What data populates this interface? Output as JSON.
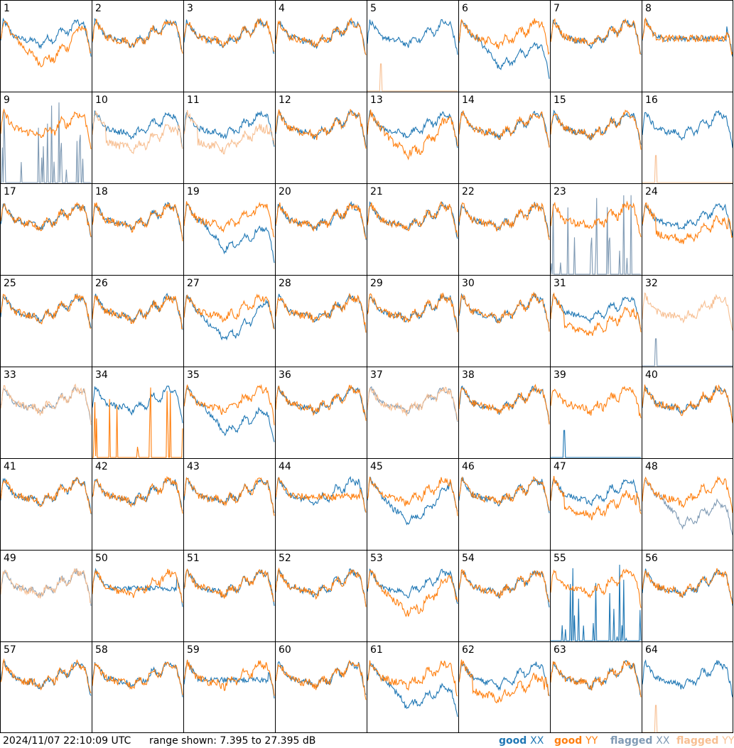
{
  "footer": {
    "timestamp": "2024/11/07 22:10:09 UTC",
    "range": "range shown: 7.395 to 27.395 dB"
  },
  "legend": [
    {
      "label": "good",
      "swatch": "XX",
      "color": "#1f77b4"
    },
    {
      "label": "good",
      "swatch": "YY",
      "color": "#ff7f0e"
    },
    {
      "label": "flagged",
      "swatch": "XX",
      "color": "#7f9ab4"
    },
    {
      "label": "flagged",
      "swatch": "YY",
      "color": "#f7bf92"
    }
  ],
  "colors": {
    "good_xx": "#1f77b4",
    "good_yy": "#ff7f0e",
    "flagged_xx": "#7f9ab4",
    "flagged_yy": "#f7bf92"
  },
  "chart_data": {
    "type": "line",
    "layout": "8x8 small multiples, one panel per antenna",
    "y_range_db": [
      7.395,
      27.395
    ],
    "series_names": [
      "good XX",
      "good YY",
      "flagged XX",
      "flagged YY"
    ],
    "panels": [
      {
        "id": "1",
        "xx": "good",
        "yy": "good",
        "shape": {
          "xx": "std",
          "yy": "dip"
        }
      },
      {
        "id": "2",
        "xx": "good",
        "yy": "good",
        "shape": {
          "xx": "std",
          "yy": "std"
        }
      },
      {
        "id": "3",
        "xx": "good",
        "yy": "good",
        "shape": {
          "xx": "std",
          "yy": "std"
        }
      },
      {
        "id": "4",
        "xx": "good",
        "yy": "good",
        "shape": {
          "xx": "std",
          "yy": "std"
        }
      },
      {
        "id": "5",
        "xx": "good",
        "yy": "flagged",
        "shape": {
          "xx": "std",
          "yy": "spike"
        }
      },
      {
        "id": "6",
        "xx": "good",
        "yy": "good",
        "shape": {
          "xx": "deep",
          "yy": "std"
        }
      },
      {
        "id": "7",
        "xx": "good",
        "yy": "good",
        "shape": {
          "xx": "std",
          "yy": "std"
        }
      },
      {
        "id": "8",
        "xx": "good",
        "yy": "good",
        "shape": {
          "xx": "flat",
          "yy": "flat"
        }
      },
      {
        "id": "9",
        "xx": "flagged",
        "yy": "good",
        "shape": {
          "xx": "spiky",
          "yy": "std"
        }
      },
      {
        "id": "10",
        "xx": "good",
        "yy": "flagged",
        "shape": {
          "xx": "std",
          "yy": "low"
        }
      },
      {
        "id": "11",
        "xx": "good",
        "yy": "flagged",
        "shape": {
          "xx": "std",
          "yy": "low"
        }
      },
      {
        "id": "12",
        "xx": "good",
        "yy": "good",
        "shape": {
          "xx": "std",
          "yy": "std"
        }
      },
      {
        "id": "13",
        "xx": "good",
        "yy": "good",
        "shape": {
          "xx": "std",
          "yy": "dip"
        }
      },
      {
        "id": "14",
        "xx": "good",
        "yy": "good",
        "shape": {
          "xx": "std",
          "yy": "std"
        }
      },
      {
        "id": "15",
        "xx": "good",
        "yy": "good",
        "shape": {
          "xx": "std",
          "yy": "std"
        }
      },
      {
        "id": "16",
        "xx": "good",
        "yy": "flagged",
        "shape": {
          "xx": "std",
          "yy": "spike"
        }
      },
      {
        "id": "17",
        "xx": "good",
        "yy": "good",
        "shape": {
          "xx": "std",
          "yy": "std"
        }
      },
      {
        "id": "18",
        "xx": "good",
        "yy": "good",
        "shape": {
          "xx": "std",
          "yy": "std"
        }
      },
      {
        "id": "19",
        "xx": "good",
        "yy": "good",
        "shape": {
          "xx": "deep",
          "yy": "std"
        }
      },
      {
        "id": "20",
        "xx": "good",
        "yy": "good",
        "shape": {
          "xx": "std",
          "yy": "std"
        }
      },
      {
        "id": "21",
        "xx": "good",
        "yy": "good",
        "shape": {
          "xx": "std",
          "yy": "std"
        }
      },
      {
        "id": "22",
        "xx": "good",
        "yy": "good",
        "shape": {
          "xx": "std",
          "yy": "std"
        }
      },
      {
        "id": "23",
        "xx": "flagged",
        "yy": "good",
        "shape": {
          "xx": "spiky",
          "yy": "std"
        }
      },
      {
        "id": "24",
        "xx": "good",
        "yy": "good",
        "shape": {
          "xx": "std",
          "yy": "low"
        }
      },
      {
        "id": "25",
        "xx": "good",
        "yy": "good",
        "shape": {
          "xx": "std",
          "yy": "std"
        }
      },
      {
        "id": "26",
        "xx": "good",
        "yy": "good",
        "shape": {
          "xx": "std",
          "yy": "std"
        }
      },
      {
        "id": "27",
        "xx": "good",
        "yy": "good",
        "shape": {
          "xx": "dip",
          "yy": "std"
        }
      },
      {
        "id": "28",
        "xx": "good",
        "yy": "good",
        "shape": {
          "xx": "std",
          "yy": "std"
        }
      },
      {
        "id": "29",
        "xx": "good",
        "yy": "good",
        "shape": {
          "xx": "std",
          "yy": "std"
        }
      },
      {
        "id": "30",
        "xx": "good",
        "yy": "good",
        "shape": {
          "xx": "std",
          "yy": "std"
        }
      },
      {
        "id": "31",
        "xx": "good",
        "yy": "good",
        "shape": {
          "xx": "std",
          "yy": "low"
        }
      },
      {
        "id": "32",
        "xx": "flagged",
        "yy": "flagged",
        "shape": {
          "xx": "spike",
          "yy": "std"
        }
      },
      {
        "id": "33",
        "xx": "flagged",
        "yy": "flagged",
        "shape": {
          "xx": "std",
          "yy": "std"
        }
      },
      {
        "id": "34",
        "xx": "good",
        "yy": "good",
        "shape": {
          "xx": "std",
          "yy": "spiky"
        }
      },
      {
        "id": "35",
        "xx": "good",
        "yy": "good",
        "shape": {
          "xx": "deep",
          "yy": "std"
        }
      },
      {
        "id": "36",
        "xx": "good",
        "yy": "good",
        "shape": {
          "xx": "std",
          "yy": "std"
        }
      },
      {
        "id": "37",
        "xx": "flagged",
        "yy": "flagged",
        "shape": {
          "xx": "std",
          "yy": "std"
        }
      },
      {
        "id": "38",
        "xx": "good",
        "yy": "good",
        "shape": {
          "xx": "std",
          "yy": "std"
        }
      },
      {
        "id": "39",
        "xx": "good",
        "yy": "good",
        "shape": {
          "xx": "spike",
          "yy": "std"
        }
      },
      {
        "id": "40",
        "xx": "good",
        "yy": "good",
        "shape": {
          "xx": "std",
          "yy": "std"
        }
      },
      {
        "id": "41",
        "xx": "good",
        "yy": "good",
        "shape": {
          "xx": "std",
          "yy": "std"
        }
      },
      {
        "id": "42",
        "xx": "good",
        "yy": "good",
        "shape": {
          "xx": "std",
          "yy": "std"
        }
      },
      {
        "id": "43",
        "xx": "good",
        "yy": "good",
        "shape": {
          "xx": "std",
          "yy": "std"
        }
      },
      {
        "id": "44",
        "xx": "good",
        "yy": "good",
        "shape": {
          "xx": "std",
          "yy": "flat"
        }
      },
      {
        "id": "45",
        "xx": "good",
        "yy": "good",
        "shape": {
          "xx": "dip",
          "yy": "std"
        }
      },
      {
        "id": "46",
        "xx": "good",
        "yy": "good",
        "shape": {
          "xx": "std",
          "yy": "std"
        }
      },
      {
        "id": "47",
        "xx": "good",
        "yy": "good",
        "shape": {
          "xx": "std",
          "yy": "low"
        }
      },
      {
        "id": "48",
        "xx": "flagged",
        "yy": "good",
        "shape": {
          "xx": "deep",
          "yy": "std"
        }
      },
      {
        "id": "49",
        "xx": "flagged",
        "yy": "flagged",
        "shape": {
          "xx": "std",
          "yy": "std"
        }
      },
      {
        "id": "50",
        "xx": "good",
        "yy": "good",
        "shape": {
          "xx": "flat",
          "yy": "std"
        }
      },
      {
        "id": "51",
        "xx": "good",
        "yy": "good",
        "shape": {
          "xx": "std",
          "yy": "std"
        }
      },
      {
        "id": "52",
        "xx": "good",
        "yy": "good",
        "shape": {
          "xx": "std",
          "yy": "std"
        }
      },
      {
        "id": "53",
        "xx": "good",
        "yy": "good",
        "shape": {
          "xx": "std",
          "yy": "dip"
        }
      },
      {
        "id": "54",
        "xx": "good",
        "yy": "good",
        "shape": {
          "xx": "std",
          "yy": "std"
        }
      },
      {
        "id": "55",
        "xx": "good",
        "yy": "good",
        "shape": {
          "xx": "spiky",
          "yy": "std"
        }
      },
      {
        "id": "56",
        "xx": "good",
        "yy": "good",
        "shape": {
          "xx": "std",
          "yy": "std"
        }
      },
      {
        "id": "57",
        "xx": "good",
        "yy": "good",
        "shape": {
          "xx": "std",
          "yy": "std"
        }
      },
      {
        "id": "58",
        "xx": "good",
        "yy": "good",
        "shape": {
          "xx": "std",
          "yy": "std"
        }
      },
      {
        "id": "59",
        "xx": "good",
        "yy": "good",
        "shape": {
          "xx": "flat",
          "yy": "std"
        }
      },
      {
        "id": "60",
        "xx": "good",
        "yy": "good",
        "shape": {
          "xx": "std",
          "yy": "std"
        }
      },
      {
        "id": "61",
        "xx": "good",
        "yy": "good",
        "shape": {
          "xx": "deep",
          "yy": "std"
        }
      },
      {
        "id": "62",
        "xx": "good",
        "yy": "good",
        "shape": {
          "xx": "std",
          "yy": "low"
        }
      },
      {
        "id": "63",
        "xx": "good",
        "yy": "good",
        "shape": {
          "xx": "std",
          "yy": "std"
        }
      },
      {
        "id": "64",
        "xx": "good",
        "yy": "flagged",
        "shape": {
          "xx": "std",
          "yy": "spike"
        }
      }
    ]
  }
}
